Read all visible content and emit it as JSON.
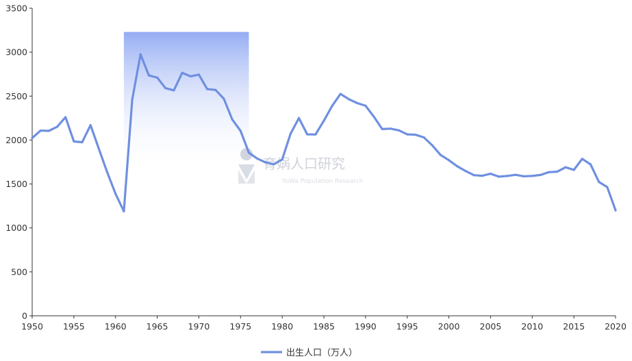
{
  "chart_data": {
    "type": "line",
    "title": "",
    "xlabel": "",
    "ylabel": "",
    "xlim": [
      1950,
      2020
    ],
    "ylim": [
      0,
      3500
    ],
    "x_ticks": [
      "1950",
      "1955",
      "1960",
      "1965",
      "1970",
      "1975",
      "1980",
      "1985",
      "1990",
      "1995",
      "2000",
      "2005",
      "2010",
      "2015",
      "2020"
    ],
    "y_ticks": [
      "0",
      "500",
      "1000",
      "1500",
      "2000",
      "2500",
      "3000",
      "3500"
    ],
    "grid": false,
    "legend_position": "bottom",
    "highlight_band": {
      "x_start": 1961,
      "x_end": 1976,
      "y_top": 3230,
      "color": "#8fa8f2"
    },
    "series": [
      {
        "name": "出生人口（万人）",
        "color": "#6f8fe0",
        "x": [
          1950,
          1951,
          1952,
          1953,
          1954,
          1955,
          1956,
          1957,
          1958,
          1959,
          1960,
          1961,
          1962,
          1963,
          1964,
          1965,
          1966,
          1967,
          1968,
          1969,
          1970,
          1971,
          1972,
          1973,
          1974,
          1975,
          1976,
          1977,
          1978,
          1979,
          1980,
          1981,
          1982,
          1983,
          1984,
          1985,
          1986,
          1987,
          1988,
          1989,
          1990,
          1991,
          1992,
          1993,
          1994,
          1995,
          1996,
          1997,
          1998,
          1999,
          2000,
          2001,
          2002,
          2003,
          2004,
          2005,
          2006,
          2007,
          2008,
          2009,
          2010,
          2011,
          2012,
          2013,
          2014,
          2015,
          2016,
          2017,
          2018,
          2019,
          2020
        ],
        "values": [
          2023,
          2107,
          2105,
          2151,
          2260,
          1984,
          1975,
          2169,
          1900,
          1635,
          1389,
          1189,
          2460,
          2975,
          2735,
          2710,
          2590,
          2565,
          2765,
          2725,
          2745,
          2580,
          2570,
          2470,
          2235,
          2105,
          1855,
          1790,
          1745,
          1725,
          1780,
          2070,
          2250,
          2065,
          2063,
          2220,
          2390,
          2525,
          2465,
          2420,
          2390,
          2265,
          2125,
          2130,
          2110,
          2065,
          2060,
          2030,
          1940,
          1830,
          1770,
          1702,
          1648,
          1600,
          1593,
          1617,
          1583,
          1591,
          1604,
          1587,
          1592,
          1603,
          1635,
          1640,
          1690,
          1660,
          1786,
          1723,
          1523,
          1465,
          1200
        ]
      }
    ]
  },
  "legend": {
    "label": "出生人口（万人）"
  },
  "watermark": {
    "title": "育娲人口研究",
    "subtitle": "YuWa Population Research"
  }
}
